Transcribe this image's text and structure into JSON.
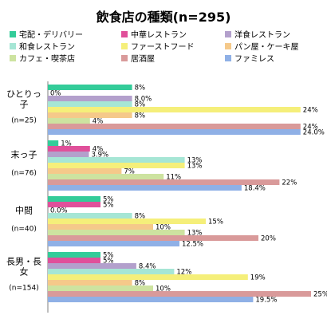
{
  "chart_data": {
    "type": "bar",
    "orientation": "horizontal",
    "title": "飲食店の種類(n=295)",
    "legend_position": "top",
    "grid": false,
    "xlim": [
      0,
      25
    ],
    "categories": [
      {
        "label": "ひとりっ子",
        "n": "(n=25)"
      },
      {
        "label": "末っ子",
        "n": "(n=76)"
      },
      {
        "label": "中間",
        "n": "(n=40)"
      },
      {
        "label": "長男・長女",
        "n": "(n=154)"
      }
    ],
    "series": [
      {
        "name": "宅配・デリバリー",
        "color": "#33cc99",
        "values": [
          8,
          1,
          5,
          5
        ],
        "labels": [
          "8%",
          "1%",
          "5%",
          "5%"
        ]
      },
      {
        "name": "中華レストラン",
        "color": "#e0509a",
        "values": [
          0,
          4,
          5,
          5
        ],
        "labels": [
          "0%",
          "4%",
          "5%",
          "5%"
        ]
      },
      {
        "name": "洋食レストラン",
        "color": "#b3a0cc",
        "values": [
          8,
          3.9,
          0,
          8.4
        ],
        "labels": [
          "8.0%",
          "3.9%",
          "0.0%",
          "8.4%"
        ]
      },
      {
        "name": "和食レストラン",
        "color": "#a6e6d5",
        "values": [
          8,
          13,
          8,
          12
        ],
        "labels": [
          "8%",
          "13%",
          "8%",
          "12%"
        ]
      },
      {
        "name": "ファーストフード",
        "color": "#f5ef7a",
        "values": [
          24,
          13,
          15,
          19
        ],
        "labels": [
          "24%",
          "13%",
          "15%",
          "19%"
        ]
      },
      {
        "name": "パン屋・ケーキ屋",
        "color": "#f5c98a",
        "values": [
          8,
          7,
          10,
          8
        ],
        "labels": [
          "8%",
          "7%",
          "10%",
          "8%"
        ]
      },
      {
        "name": "カフェ・喫茶店",
        "color": "#cde3a0",
        "values": [
          4,
          11,
          13,
          10
        ],
        "labels": [
          "4%",
          "11%",
          "13%",
          "10%"
        ]
      },
      {
        "name": "居酒屋",
        "color": "#d99a9a",
        "values": [
          24,
          22,
          20,
          25
        ],
        "labels": [
          "24%",
          "22%",
          "20%",
          "25%"
        ]
      },
      {
        "name": "ファミレス",
        "color": "#8fb0e6",
        "values": [
          24,
          18.4,
          12.5,
          19.5
        ],
        "labels": [
          "24.0%",
          "18.4%",
          "12.5%",
          "19.5%"
        ]
      }
    ]
  }
}
